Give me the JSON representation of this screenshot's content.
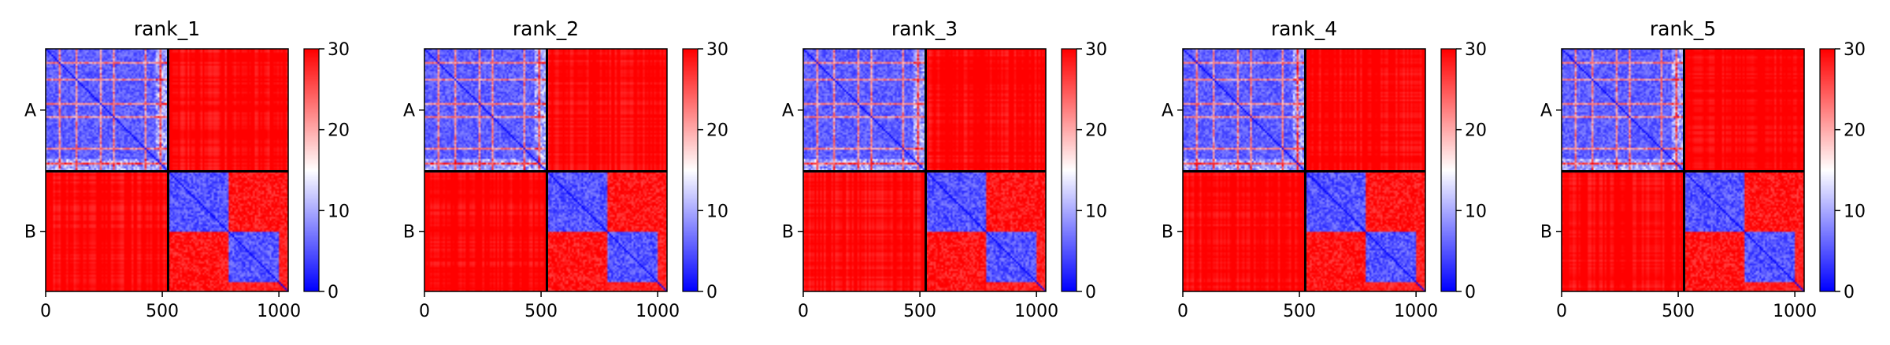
{
  "chart_data": {
    "type": "heatmap",
    "description_of_content": "PAE heatmaps",
    "panels": [
      {
        "title": "rank_1"
      },
      {
        "title": "rank_2"
      },
      {
        "title": "rank_3"
      },
      {
        "title": "rank_4"
      },
      {
        "title": "rank_5"
      }
    ],
    "matrix_size": 1040,
    "chain_boundary": 525,
    "chains": [
      {
        "label": "A",
        "start": 0,
        "end": 525
      },
      {
        "label": "B",
        "start": 525,
        "end": 1040
      }
    ],
    "x_ticks": [
      0,
      500,
      1000
    ],
    "x_tick_labels": [
      "0",
      "500",
      "1000"
    ],
    "colorbar": {
      "vmin": 0,
      "vmax": 30,
      "ticks": [
        0,
        10,
        20,
        30
      ],
      "tick_labels": [
        "0",
        "10",
        "20",
        "30"
      ],
      "colormap": "bwr",
      "colors": {
        "low": "#0000ff",
        "mid": "#ffffff",
        "high": "#ff0000"
      }
    },
    "domain_blocks": [
      {
        "start": 525,
        "end": 780
      },
      {
        "start": 780,
        "end": 1040
      }
    ],
    "grid": false
  }
}
